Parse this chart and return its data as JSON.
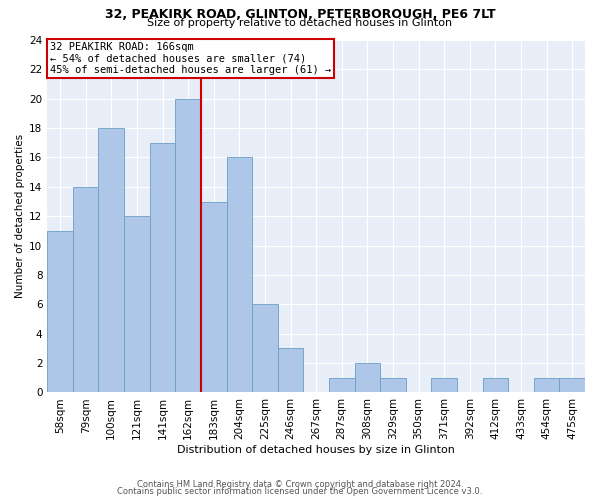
{
  "title1": "32, PEAKIRK ROAD, GLINTON, PETERBOROUGH, PE6 7LT",
  "title2": "Size of property relative to detached houses in Glinton",
  "xlabel": "Distribution of detached houses by size in Glinton",
  "ylabel": "Number of detached properties",
  "footer1": "Contains HM Land Registry data © Crown copyright and database right 2024.",
  "footer2": "Contains public sector information licensed under the Open Government Licence v3.0.",
  "bins": [
    "58sqm",
    "79sqm",
    "100sqm",
    "121sqm",
    "141sqm",
    "162sqm",
    "183sqm",
    "204sqm",
    "225sqm",
    "246sqm",
    "267sqm",
    "287sqm",
    "308sqm",
    "329sqm",
    "350sqm",
    "371sqm",
    "392sqm",
    "412sqm",
    "433sqm",
    "454sqm",
    "475sqm"
  ],
  "values": [
    11,
    14,
    18,
    12,
    17,
    20,
    13,
    16,
    6,
    3,
    0,
    1,
    2,
    1,
    0,
    1,
    0,
    1,
    0,
    1,
    1
  ],
  "bar_color": "#aec6e8",
  "bar_edge_color": "#6b9ec8",
  "vline_color": "#cc0000",
  "annotation_box_text": "32 PEAKIRK ROAD: 166sqm\n← 54% of detached houses are smaller (74)\n45% of semi-detached houses are larger (61) →",
  "annotation_box_color": "#cc0000",
  "background_color": "#e8eef7",
  "ylim": [
    0,
    24
  ],
  "yticks": [
    0,
    2,
    4,
    6,
    8,
    10,
    12,
    14,
    16,
    18,
    20,
    22,
    24
  ],
  "title1_fontsize": 9.0,
  "title2_fontsize": 8.0,
  "xlabel_fontsize": 8.0,
  "ylabel_fontsize": 7.5,
  "footer_fontsize": 6.0,
  "tick_fontsize": 7.5
}
